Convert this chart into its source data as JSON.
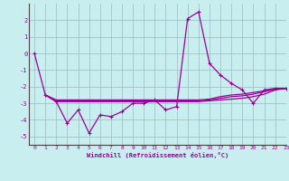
{
  "xlabel": "Windchill (Refroidissement éolien,°C)",
  "xlim": [
    -0.5,
    23
  ],
  "ylim": [
    -5.5,
    3.0
  ],
  "yticks": [
    -5,
    -4,
    -3,
    -2,
    -1,
    0,
    1,
    2
  ],
  "xticks": [
    0,
    1,
    2,
    3,
    4,
    5,
    6,
    7,
    8,
    9,
    10,
    11,
    12,
    13,
    14,
    15,
    16,
    17,
    18,
    19,
    20,
    21,
    22,
    23
  ],
  "bg_color": "#c8eef0",
  "grid_color": "#9abcbe",
  "line_color": "#990099",
  "series_main": [
    0.0,
    -2.5,
    -2.9,
    -4.2,
    -3.4,
    -4.8,
    -3.7,
    -3.8,
    -3.5,
    -3.0,
    -3.0,
    -2.8,
    -3.4,
    -3.2,
    2.1,
    2.5,
    -0.6,
    -1.3,
    -1.8,
    -2.2,
    -3.0,
    -2.2,
    -2.1,
    -2.1
  ],
  "series_flat1": [
    null,
    -2.5,
    -2.8,
    -2.8,
    -2.8,
    -2.8,
    -2.8,
    -2.8,
    -2.8,
    -2.8,
    -2.8,
    -2.8,
    -2.8,
    -2.8,
    -2.8,
    -2.8,
    -2.75,
    -2.6,
    -2.5,
    -2.45,
    -2.35,
    -2.25,
    -2.15,
    -2.1
  ],
  "series_flat2": [
    null,
    -2.5,
    -2.9,
    -2.9,
    -2.9,
    -2.9,
    -2.9,
    -2.9,
    -2.9,
    -2.9,
    -2.9,
    -2.9,
    -2.9,
    -2.9,
    -2.9,
    -2.9,
    -2.85,
    -2.8,
    -2.75,
    -2.7,
    -2.6,
    -2.45,
    -2.2,
    -2.1
  ],
  "series_flat3": [
    null,
    -2.5,
    -2.85,
    -2.85,
    -2.85,
    -2.85,
    -2.85,
    -2.85,
    -2.85,
    -2.85,
    -2.85,
    -2.85,
    -2.85,
    -2.85,
    -2.85,
    -2.85,
    -2.8,
    -2.7,
    -2.6,
    -2.55,
    -2.45,
    -2.3,
    -2.15,
    -2.1
  ]
}
